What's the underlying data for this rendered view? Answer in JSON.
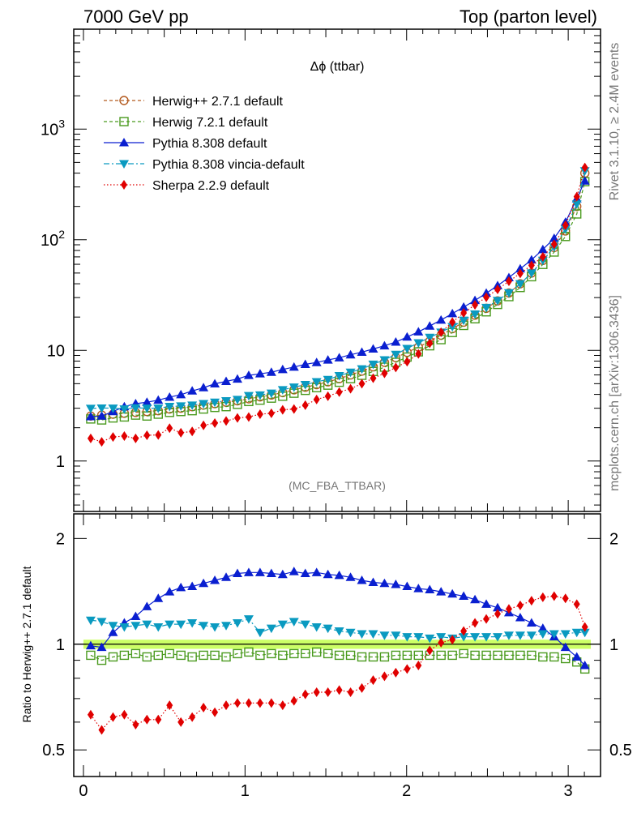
{
  "header": {
    "left": "7000 GeV pp",
    "right": "Top (parton level)"
  },
  "side": {
    "rivet": "Rivet 3.1.10, ≥ 2.4M events",
    "mcplots": "mcplots.cern.ch [arXiv:1306.3436]"
  },
  "chart_data": [
    {
      "type": "line",
      "title": "Δϕ (ttbar)",
      "annotation": "(MC_FBA_TTBAR)",
      "yscale": "log",
      "xlim": [
        -0.06,
        3.2
      ],
      "ylim": [
        0.35,
        8000
      ],
      "yticks": [
        "1",
        "10",
        "10²",
        "10³"
      ],
      "legend_position": "top-left",
      "x": [
        0.045,
        0.113,
        0.183,
        0.253,
        0.323,
        0.393,
        0.463,
        0.533,
        0.603,
        0.673,
        0.743,
        0.813,
        0.883,
        0.953,
        1.023,
        1.093,
        1.163,
        1.233,
        1.303,
        1.373,
        1.443,
        1.513,
        1.583,
        1.653,
        1.723,
        1.793,
        1.863,
        1.933,
        2.003,
        2.073,
        2.143,
        2.213,
        2.283,
        2.353,
        2.423,
        2.493,
        2.563,
        2.633,
        2.703,
        2.773,
        2.843,
        2.913,
        2.983,
        3.053,
        3.103
      ],
      "series": [
        {
          "name": "Herwig++ 2.7.1 default",
          "color": "#b35a1f",
          "marker": "open-circle",
          "line": "dashed",
          "values": [
            2.55,
            2.6,
            2.65,
            2.7,
            2.75,
            2.8,
            2.85,
            2.95,
            3.0,
            3.1,
            3.2,
            3.3,
            3.4,
            3.5,
            3.65,
            3.8,
            3.95,
            4.15,
            4.4,
            4.65,
            4.9,
            5.2,
            5.55,
            6.0,
            6.5,
            7.1,
            7.8,
            8.6,
            9.6,
            10.7,
            12.1,
            13.7,
            15.7,
            18.0,
            20.8,
            24.0,
            28.0,
            33.0,
            40.0,
            50.0,
            65.0,
            85.0,
            120.0,
            200.0,
            400.0
          ]
        },
        {
          "name": "Herwig 7.2.1 default",
          "color": "#4a9a1e",
          "marker": "open-square",
          "line": "dashed",
          "values": [
            2.4,
            2.35,
            2.45,
            2.5,
            2.6,
            2.55,
            2.65,
            2.75,
            2.8,
            2.85,
            2.95,
            3.05,
            3.1,
            3.25,
            3.45,
            3.55,
            3.7,
            3.85,
            4.1,
            4.35,
            4.6,
            4.85,
            5.15,
            5.55,
            5.95,
            6.45,
            7.05,
            7.8,
            8.7,
            9.7,
            11.0,
            12.5,
            14.5,
            16.8,
            19.3,
            22.3,
            26.0,
            30.6,
            37.0,
            46.3,
            59.8,
            77.4,
            107.0,
            171.0,
            335.0
          ]
        },
        {
          "name": "Pythia 8.308 default",
          "color": "#0a1fd0",
          "marker": "filled-triangle-up",
          "line": "solid",
          "values": [
            2.52,
            2.55,
            2.8,
            3.1,
            3.3,
            3.4,
            3.55,
            3.78,
            3.98,
            4.3,
            4.6,
            4.99,
            5.25,
            5.51,
            5.94,
            6.14,
            6.35,
            6.72,
            7.07,
            7.48,
            7.77,
            8.19,
            8.58,
            9.12,
            9.64,
            10.3,
            11.0,
            11.9,
            13.2,
            14.7,
            16.6,
            18.8,
            21.5,
            24.6,
            28.3,
            32.9,
            38.5,
            45.5,
            54.6,
            65.8,
            81.6,
            103.0,
            144.0,
            235.0,
            340.0
          ]
        },
        {
          "name": "Pythia 8.308 vincia-default",
          "color": "#0a9ac0",
          "marker": "filled-triangle-down",
          "line": "dashdot",
          "values": [
            2.99,
            3.01,
            3.0,
            2.95,
            3.02,
            3.0,
            3.0,
            3.11,
            3.14,
            3.2,
            3.3,
            3.4,
            3.5,
            3.6,
            3.9,
            3.95,
            4.1,
            4.4,
            4.65,
            4.9,
            5.2,
            5.45,
            5.9,
            6.35,
            6.8,
            7.5,
            8.2,
            9.2,
            10.4,
            11.7,
            13.1,
            14.6,
            16.4,
            18.7,
            21.3,
            24.4,
            28.2,
            33.1,
            40.0,
            50.0,
            65.0,
            86.0,
            125.0,
            210.0,
            420.0
          ]
        },
        {
          "name": "Sherpa 2.2.9 default",
          "color": "#e00000",
          "marker": "filled-diamond",
          "line": "dotted",
          "values": [
            1.6,
            1.49,
            1.65,
            1.68,
            1.6,
            1.71,
            1.72,
            1.98,
            1.8,
            1.85,
            2.1,
            2.2,
            2.3,
            2.45,
            2.5,
            2.65,
            2.7,
            2.9,
            2.95,
            3.2,
            3.6,
            3.85,
            4.2,
            4.5,
            5.0,
            5.6,
            6.2,
            7.0,
            7.9,
            9.3,
            11.6,
            14.6,
            18.0,
            21.8,
            25.8,
            30.2,
            35.6,
            42.1,
            49.6,
            58.7,
            70.1,
            91.0,
            135.0,
            245.0,
            450.0
          ]
        }
      ]
    },
    {
      "type": "line",
      "ylabel": "Ratio to Herwig++ 2.7.1 default",
      "yscale": "log",
      "xlim": [
        -0.06,
        3.2
      ],
      "ylim": [
        0.42,
        2.35
      ],
      "xticks": [
        "0",
        "1",
        "2",
        "3"
      ],
      "yticks": [
        "0.5",
        "1",
        "2"
      ],
      "reference": {
        "value": 1.0,
        "band": [
          0.97,
          1.03
        ],
        "band_color": "#ccff66"
      },
      "series": [
        {
          "name": "Herwig 7.2.1 default",
          "color": "#4a9a1e",
          "marker": "open-square",
          "values": [
            0.93,
            0.9,
            0.92,
            0.93,
            0.94,
            0.92,
            0.93,
            0.94,
            0.93,
            0.92,
            0.93,
            0.93,
            0.92,
            0.94,
            0.95,
            0.93,
            0.94,
            0.93,
            0.94,
            0.94,
            0.95,
            0.94,
            0.93,
            0.93,
            0.92,
            0.92,
            0.92,
            0.93,
            0.93,
            0.93,
            0.93,
            0.93,
            0.93,
            0.94,
            0.93,
            0.93,
            0.93,
            0.93,
            0.93,
            0.93,
            0.92,
            0.92,
            0.91,
            0.89,
            0.85
          ]
        },
        {
          "name": "Pythia 8.308 default",
          "color": "#0a1fd0",
          "marker": "filled-triangle-up",
          "values": [
            0.99,
            0.98,
            1.08,
            1.15,
            1.2,
            1.28,
            1.35,
            1.41,
            1.45,
            1.46,
            1.49,
            1.52,
            1.55,
            1.59,
            1.6,
            1.6,
            1.59,
            1.58,
            1.61,
            1.59,
            1.6,
            1.58,
            1.57,
            1.55,
            1.52,
            1.5,
            1.49,
            1.48,
            1.46,
            1.44,
            1.43,
            1.41,
            1.39,
            1.37,
            1.34,
            1.3,
            1.27,
            1.23,
            1.19,
            1.15,
            1.11,
            1.05,
            0.98,
            0.92,
            0.87
          ]
        },
        {
          "name": "Pythia 8.308 vincia-default",
          "color": "#0a9ac0",
          "marker": "filled-triangle-down",
          "values": [
            1.17,
            1.16,
            1.13,
            1.12,
            1.13,
            1.14,
            1.12,
            1.14,
            1.14,
            1.15,
            1.13,
            1.12,
            1.13,
            1.15,
            1.18,
            1.08,
            1.11,
            1.14,
            1.16,
            1.14,
            1.12,
            1.11,
            1.09,
            1.08,
            1.07,
            1.07,
            1.06,
            1.06,
            1.05,
            1.05,
            1.04,
            1.05,
            1.04,
            1.05,
            1.05,
            1.05,
            1.05,
            1.06,
            1.06,
            1.06,
            1.07,
            1.07,
            1.07,
            1.08,
            1.08
          ]
        },
        {
          "name": "Sherpa 2.2.9 default",
          "color": "#e00000",
          "marker": "filled-diamond",
          "values": [
            0.63,
            0.57,
            0.62,
            0.63,
            0.59,
            0.61,
            0.61,
            0.67,
            0.6,
            0.62,
            0.66,
            0.64,
            0.67,
            0.68,
            0.68,
            0.68,
            0.68,
            0.67,
            0.69,
            0.72,
            0.73,
            0.73,
            0.74,
            0.73,
            0.75,
            0.79,
            0.81,
            0.83,
            0.85,
            0.87,
            0.96,
            1.01,
            1.03,
            1.09,
            1.15,
            1.18,
            1.22,
            1.26,
            1.29,
            1.33,
            1.36,
            1.37,
            1.35,
            1.3,
            1.12
          ]
        }
      ]
    }
  ]
}
